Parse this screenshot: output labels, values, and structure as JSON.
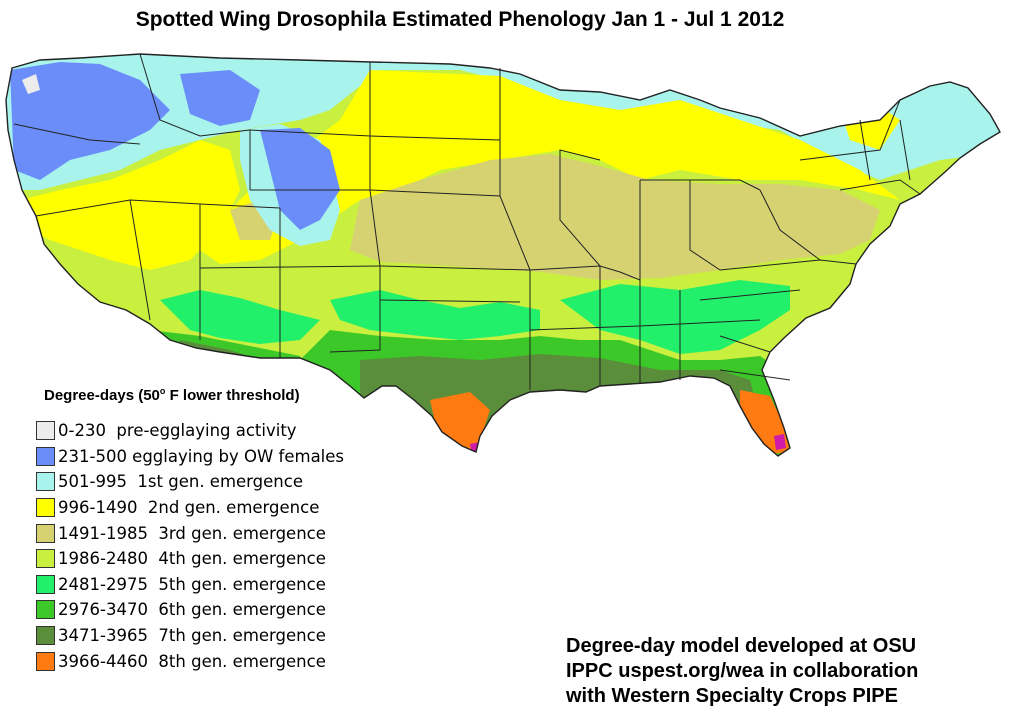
{
  "title": "Spotted Wing Drosophila Estimated Phenology Jan 1 - Jul 1 2012",
  "legend": {
    "title": "Degree-days (50",
    "title_sup": "o",
    "title_suffix": " F lower threshold)",
    "items": [
      {
        "label": "0-230  pre-egglaying activity",
        "color": "#ececec"
      },
      {
        "label": "231-500 egglaying by OW females",
        "color": "#6a8dfa"
      },
      {
        "label": "501-995  1st gen. emergence",
        "color": "#a8f4ec"
      },
      {
        "label": "996-1490  2nd gen. emergence",
        "color": "#ffff00"
      },
      {
        "label": "1491-1985  3rd gen. emergence",
        "color": "#d6d272"
      },
      {
        "label": "1986-2480  4th gen. emergence",
        "color": "#c9f03e"
      },
      {
        "label": "2481-2975  5th gen. emergence",
        "color": "#22f06a"
      },
      {
        "label": "2976-3470  6th gen. emergence",
        "color": "#3cc828"
      },
      {
        "label": "3471-3965  7th gen. emergence",
        "color": "#5a8e3a"
      },
      {
        "label": "3966-4460  8th gen. emergence",
        "color": "#ff7a10"
      }
    ]
  },
  "extra_colors": {
    "hot_spot": "#d01aa8",
    "border": "#222222"
  },
  "credit": {
    "line1": "Degree-day model developed at OSU",
    "line2": "IPPC uspest.org/wea in collaboration",
    "line3": "with Western Specialty Crops PIPE"
  }
}
